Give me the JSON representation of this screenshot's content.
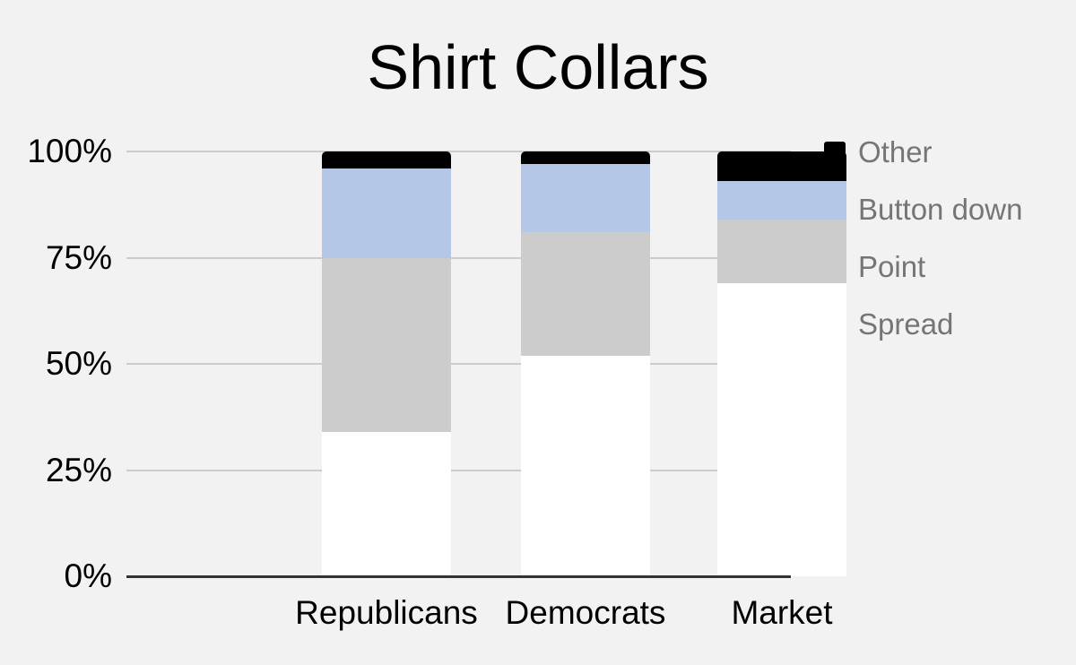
{
  "title": "Shirt Collars",
  "background_color": "#f2f2f2",
  "chart_data": {
    "type": "bar",
    "subtype": "stacked-100-percent-column",
    "title": "Shirt Collars",
    "categories": [
      "Republicans",
      "Democrats",
      "Market"
    ],
    "series": [
      {
        "name": "Spread",
        "color": "#ffffff",
        "values": [
          34,
          52,
          69
        ]
      },
      {
        "name": "Point",
        "color": "#cccccc",
        "values": [
          41,
          29,
          15
        ]
      },
      {
        "name": "Button down",
        "color": "#b4c7e7",
        "values": [
          21,
          16,
          9
        ]
      },
      {
        "name": "Other",
        "color": "#000000",
        "values": [
          4,
          3,
          7
        ]
      }
    ],
    "y_axis": {
      "range": [
        0,
        100
      ],
      "tick_values": [
        0,
        25,
        50,
        75,
        100
      ],
      "tick_labels": [
        "0%",
        "25%",
        "50%",
        "75%",
        "100%"
      ],
      "gridlines": true,
      "gridline_color": "#cccccc",
      "axis_line_color": "#333333",
      "label_color": "#000000"
    },
    "x_axis": {
      "labels": [
        "Republicans",
        "Democrats",
        "Market"
      ],
      "label_color": "#000000"
    },
    "legend": {
      "position": "right",
      "order": [
        "Other",
        "Button down",
        "Point",
        "Spread"
      ],
      "text_color": "#757575"
    }
  }
}
